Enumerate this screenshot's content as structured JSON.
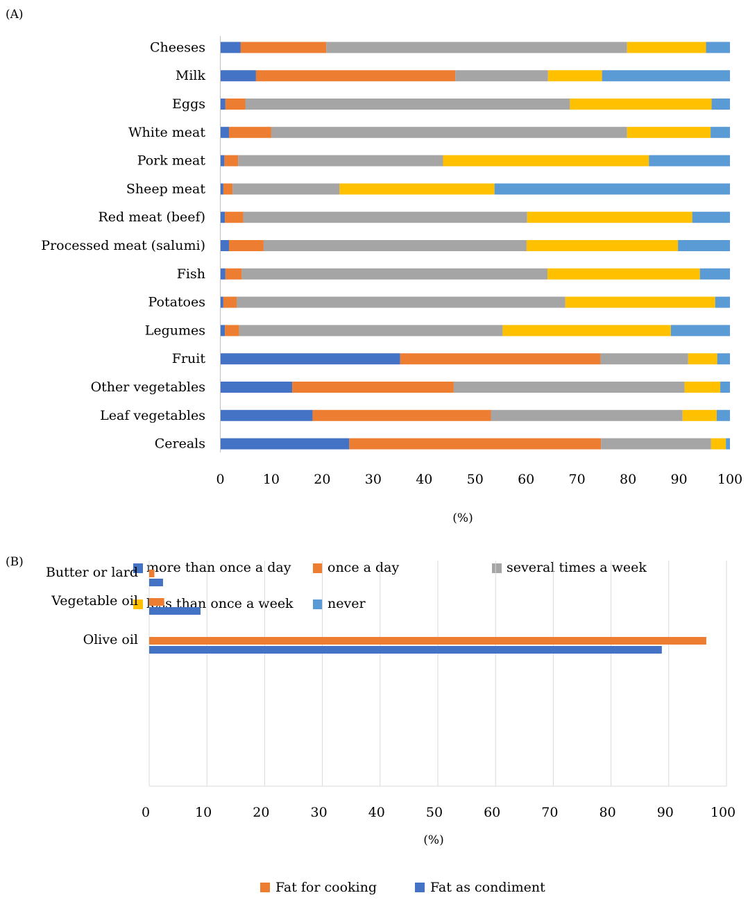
{
  "chart_data": [
    {
      "panel_label": "(A)",
      "type": "bar",
      "orientation": "horizontal",
      "stacked": true,
      "categories": [
        "Cheeses",
        "Milk",
        "Eggs",
        "White meat",
        "Pork meat",
        "Sheep meat",
        "Red meat (beef)",
        "Processed meat (salumi)",
        "Fish",
        "Potatoes",
        "Legumes",
        "Fruit",
        "Other vegetables",
        "Leaf vegetables",
        "Cereals"
      ],
      "series": [
        {
          "name": "more than once a day",
          "color": "#4472C4",
          "values": [
            4,
            7,
            1,
            1.7,
            0.8,
            0.6,
            0.9,
            1.7,
            1,
            0.6,
            0.9,
            35.3,
            14.1,
            18.1,
            25.3
          ]
        },
        {
          "name": "once a day",
          "color": "#ED7D31",
          "values": [
            16.8,
            39.1,
            3.9,
            8.3,
            2.7,
            1.8,
            3.6,
            6.8,
            3.2,
            2.6,
            2.8,
            39.3,
            31.7,
            35,
            49.4
          ]
        },
        {
          "name": "several times a week",
          "color": "#A5A5A5",
          "values": [
            59,
            18.2,
            63.7,
            69.8,
            40.2,
            21,
            55.7,
            51.6,
            60,
            64.5,
            51.7,
            17.2,
            45.3,
            37.6,
            21.6
          ]
        },
        {
          "name": "less than once a week",
          "color": "#FFC000",
          "values": [
            15.5,
            10.6,
            27.8,
            16.4,
            40.4,
            30.4,
            32.4,
            29.7,
            29.9,
            29.4,
            33,
            5.7,
            7,
            6.7,
            2.9
          ]
        },
        {
          "name": "never",
          "color": "#5B9BD5",
          "values": [
            4.7,
            25.1,
            3.6,
            3.8,
            15.9,
            46.2,
            7.4,
            10.2,
            5.9,
            2.9,
            11.6,
            2.5,
            1.9,
            2.6,
            0.8
          ]
        }
      ],
      "xlim": [
        0,
        100
      ],
      "xticks": [
        "0",
        "10",
        "20",
        "30",
        "40",
        "50",
        "60",
        "70",
        "80",
        "90",
        "100"
      ],
      "xlabel": "(%)",
      "grid": false,
      "legend_position": "bottom"
    },
    {
      "panel_label": "(B)",
      "type": "bar",
      "orientation": "horizontal",
      "stacked": false,
      "categories": [
        "Butter or lard",
        "Vegetable oil",
        "Olive oil"
      ],
      "series": [
        {
          "name": "Fat for cooking",
          "color": "#ED7D31",
          "values": [
            0.9,
            2.6,
            96.5
          ]
        },
        {
          "name": "Fat as condiment",
          "color": "#4472C4",
          "values": [
            2.4,
            8.9,
            88.8
          ]
        }
      ],
      "xlim": [
        0,
        100
      ],
      "xticks": [
        "0",
        "10",
        "20",
        "30",
        "40",
        "50",
        "60",
        "70",
        "80",
        "90",
        "100"
      ],
      "xlabel": "(%)",
      "grid": true,
      "legend_position": "bottom"
    }
  ]
}
